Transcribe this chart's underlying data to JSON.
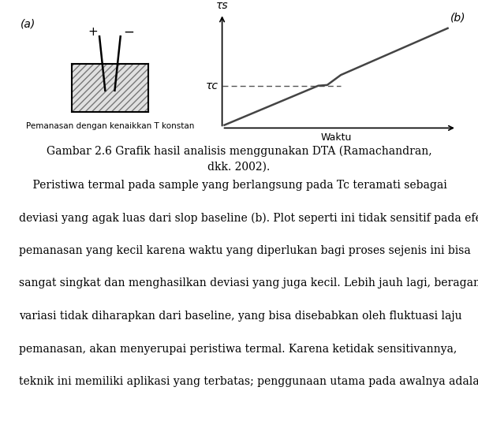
{
  "figure_width": 6.06,
  "figure_height": 5.62,
  "background_color": "#ffffff",
  "caption_line1": "Gambar 2.6 Grafik hasil analisis menggunakan DTA (Ramachandran,",
  "caption_line2": "dkk. 2002).",
  "body_text": [
    "    Peristiwa termal pada sample yang berlangsung pada Tc teramati sebagai",
    "deviasi yang agak luas dari slop baseline (b). Plot seperti ini tidak sensitif pada efek",
    "pemanasan yang kecil karena waktu yang diperlukan bagi proses sejenis ini bisa",
    "sangat singkat dan menghasilkan deviasi yang juga kecil. Lebih jauh lagi, beragam",
    "variasi tidak diharapkan dari baseline, yang bisa disebabkan oleh fluktuasi laju",
    "pemanasan, akan menyerupai peristiwa termal. Karena ketidak sensitivannya,",
    "teknik ini memiliki aplikasi yang terbatas; penggunaan utama pada awalnya adalah"
  ],
  "label_a": "(a)",
  "label_b": "(b)",
  "label_waktu": "Waktu",
  "label_ts": "τs",
  "label_tc": "τc",
  "label_caption_a": "Pemanasan dengan kenaikkan T konstan",
  "graph_color": "#444444",
  "dashed_color": "#555555",
  "caption_fontsize": 10,
  "body_fontsize": 10,
  "axis_label_fontsize": 10
}
